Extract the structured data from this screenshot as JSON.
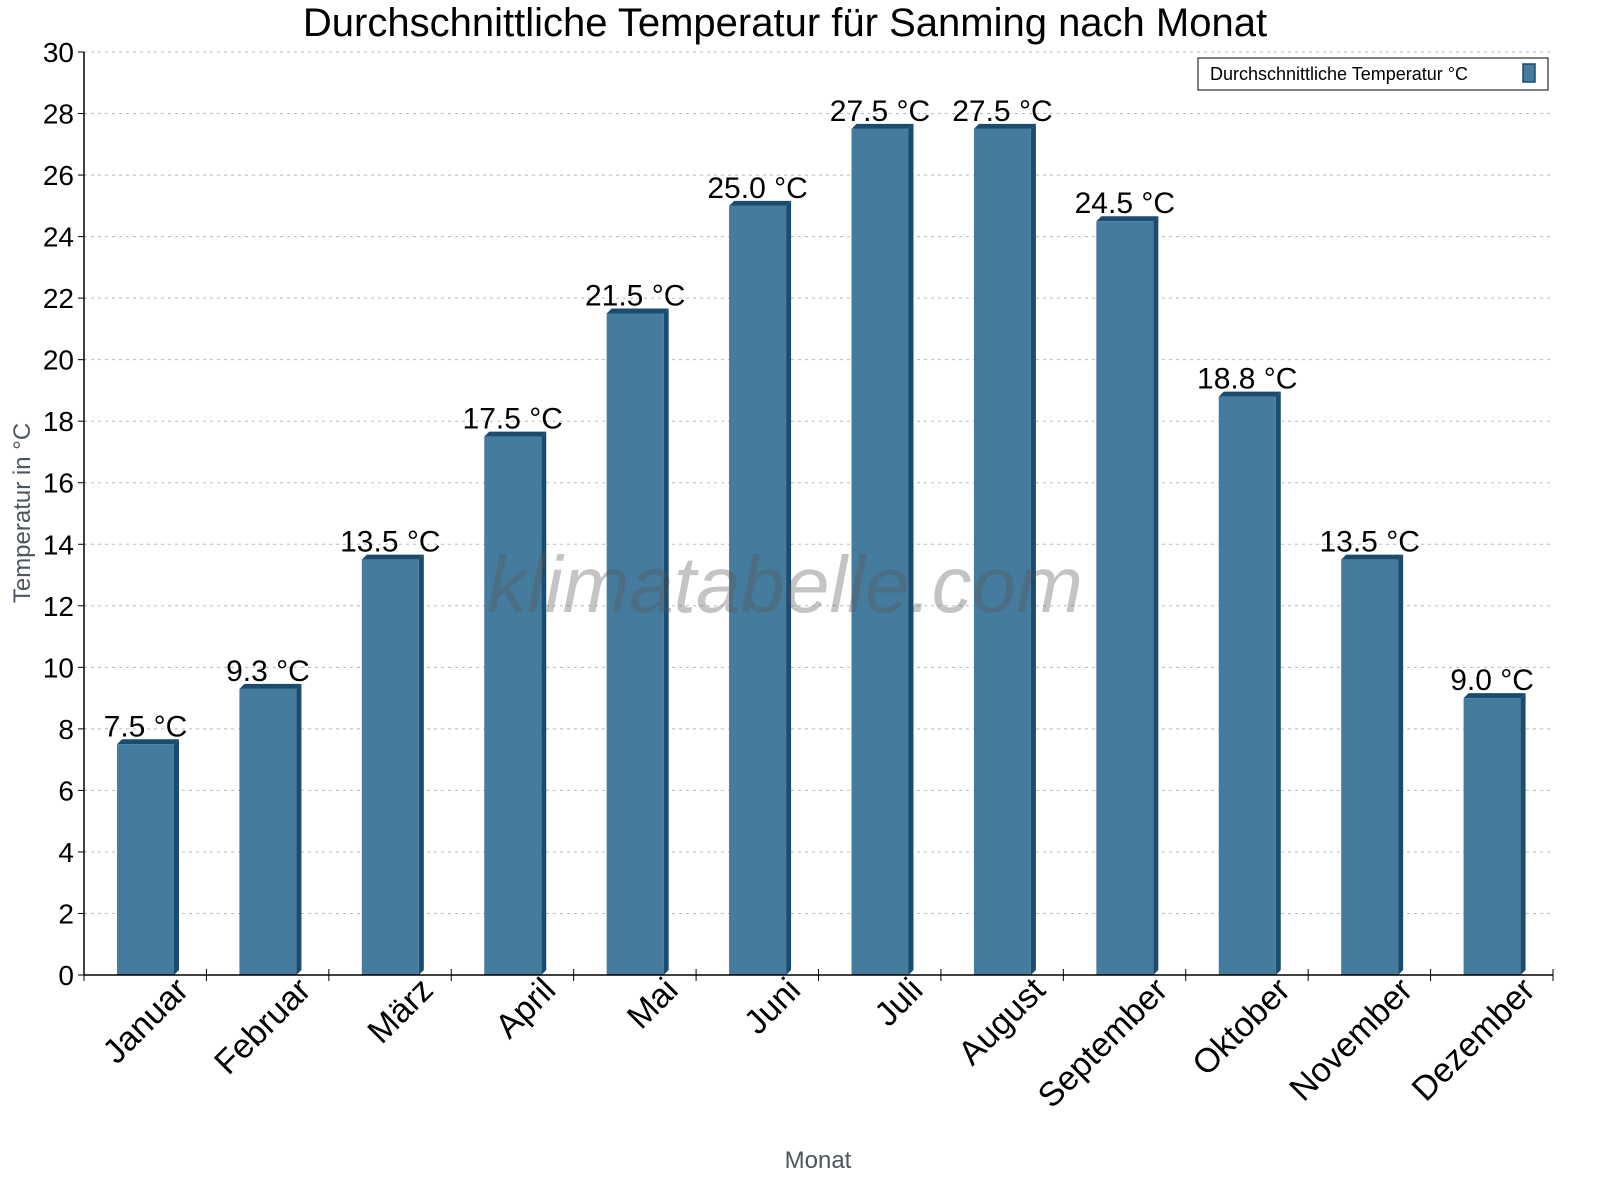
{
  "chart_data": {
    "type": "bar",
    "title": "Durchschnittliche Temperatur für Sanming nach Monat",
    "xlabel": "Monat",
    "ylabel": "Temperatur in °C",
    "ylim": [
      0,
      30
    ],
    "yticks": [
      0,
      2,
      4,
      6,
      8,
      10,
      12,
      14,
      16,
      18,
      20,
      22,
      24,
      26,
      28,
      30
    ],
    "grid": true,
    "legend_placement": "top-right",
    "categories": [
      "Januar",
      "Februar",
      "März",
      "April",
      "Mai",
      "Juni",
      "Juli",
      "August",
      "September",
      "Oktober",
      "November",
      "Dezember"
    ],
    "series": [
      {
        "name": "Durchschnittliche Temperatur °C",
        "values": [
          7.5,
          9.3,
          13.5,
          17.5,
          21.5,
          25.0,
          27.5,
          27.5,
          24.5,
          18.8,
          13.5,
          9.0
        ],
        "labels": [
          "7.5 °C",
          "9.3 °C",
          "13.5 °C",
          "17.5 °C",
          "21.5 °C",
          "25.0 °C",
          "27.5 °C",
          "27.5 °C",
          "24.5 °C",
          "18.8 °C",
          "13.5 °C",
          "9.0 °C"
        ],
        "color": "#457b9d",
        "side_color": "#1b4b6e"
      }
    ],
    "watermark": "klimatabelle.com"
  }
}
